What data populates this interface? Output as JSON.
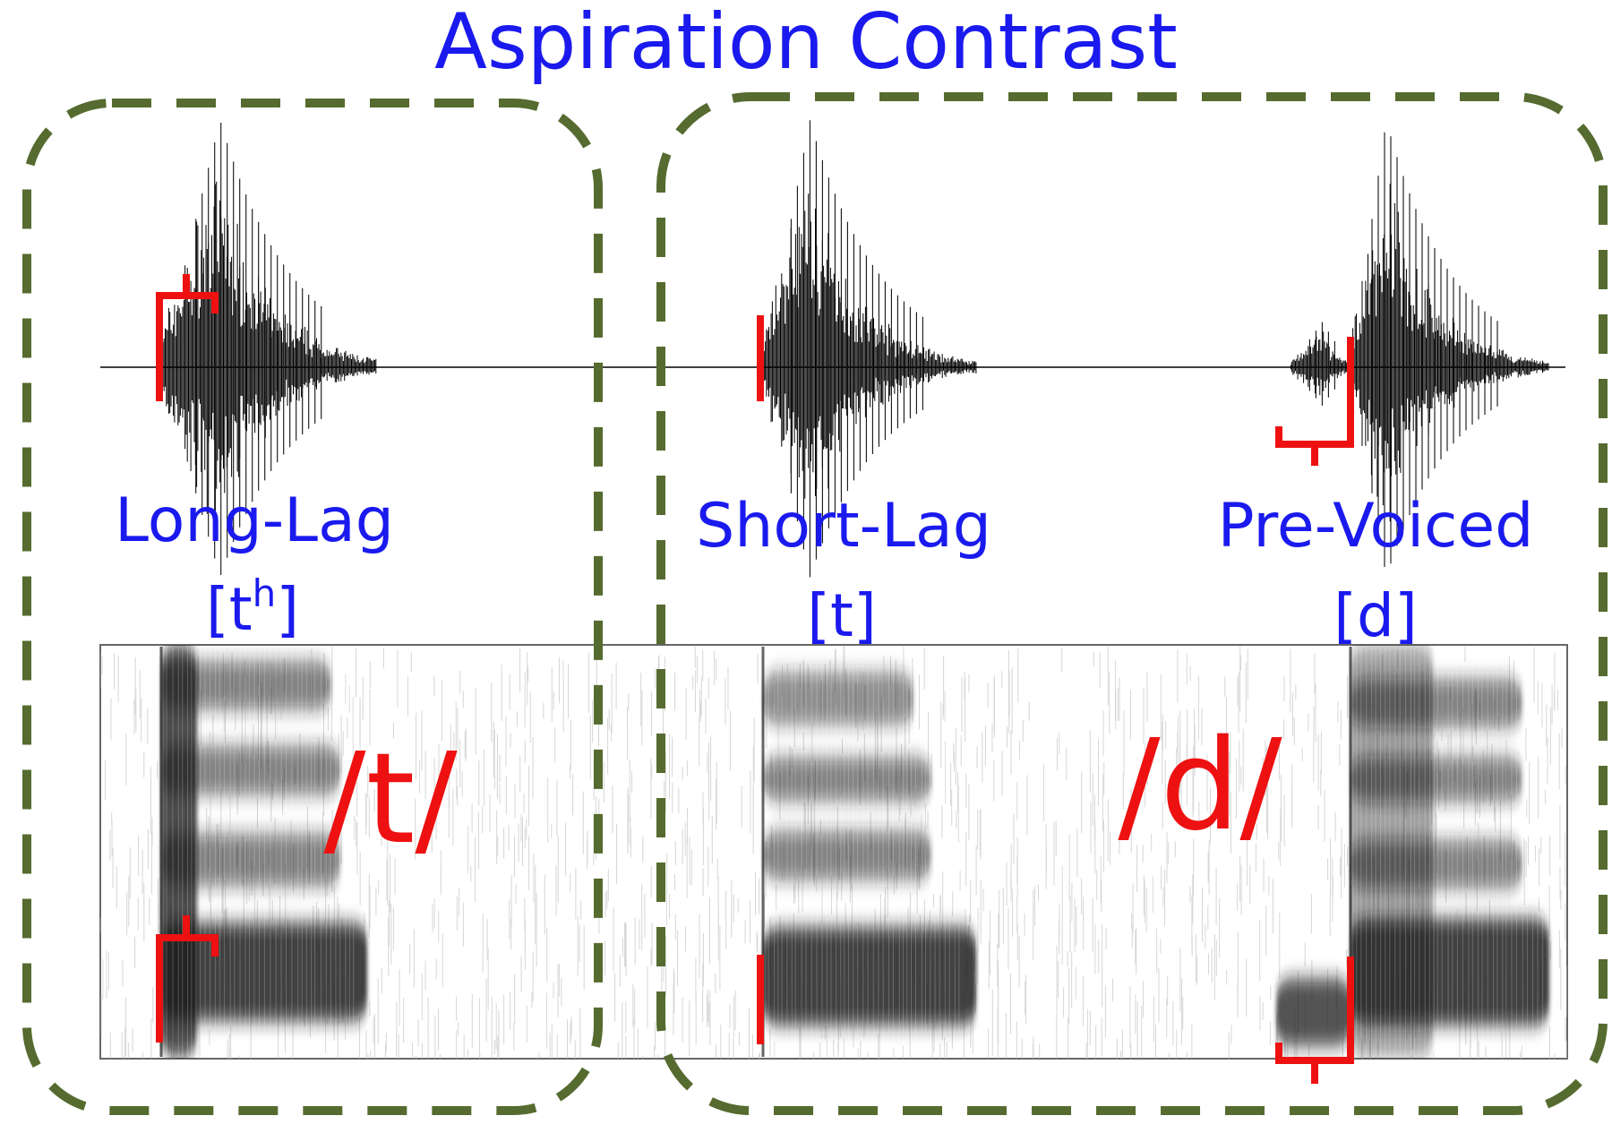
{
  "title": "Aspiration Contrast",
  "phonemes": {
    "left": "/t/",
    "right": "/d/"
  },
  "categories": [
    {
      "label": "Long-Lag",
      "ipa_base": "[t",
      "ipa_sup": "h",
      "ipa_end": "]"
    },
    {
      "label": "Short-Lag",
      "ipa_base": "[t",
      "ipa_sup": "",
      "ipa_end": "]"
    },
    {
      "label": "Pre-Voiced",
      "ipa_base": "[d",
      "ipa_sup": "",
      "ipa_end": "]"
    }
  ],
  "colors": {
    "title": "#1a1aee",
    "labels": "#1a1aee",
    "markers": "#ee1111",
    "phonemes": "#ee1111",
    "box_border": "#556b2f",
    "waveform": "#000000",
    "spectrogram": "#222222"
  }
}
